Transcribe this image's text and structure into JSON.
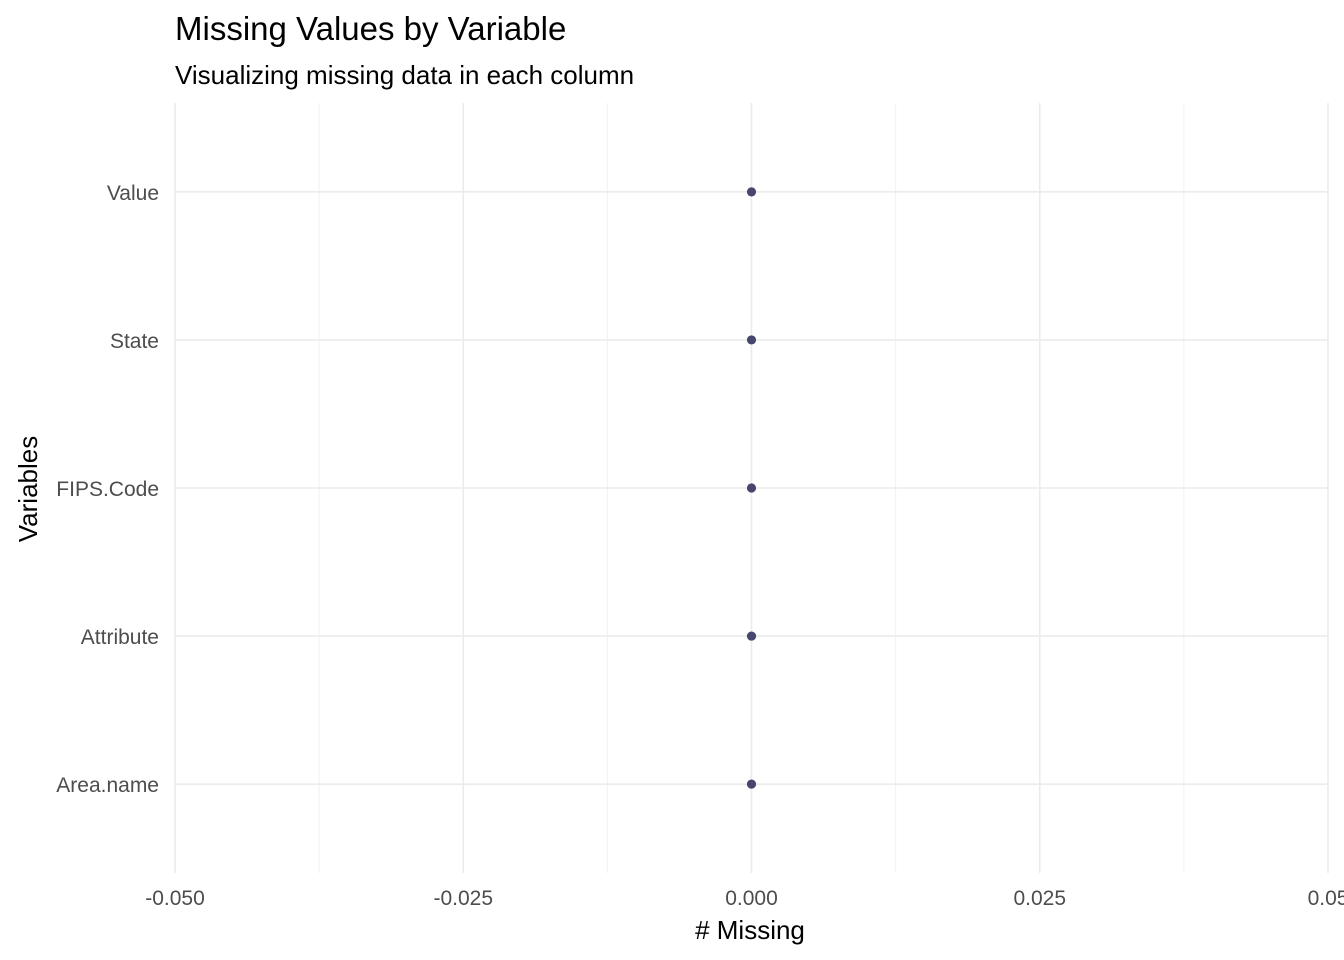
{
  "chart_data": {
    "type": "scatter",
    "title": "Missing Values by Variable",
    "subtitle": "Visualizing missing data in each column",
    "xlabel": "# Missing",
    "ylabel": "Variables",
    "categories": [
      "Area.name",
      "Attribute",
      "FIPS.Code",
      "State",
      "Value"
    ],
    "values": [
      0,
      0,
      0,
      0,
      0
    ],
    "xlim": [
      -0.05,
      0.05
    ],
    "x_ticks": [
      -0.05,
      -0.025,
      0,
      0.025,
      0.05
    ],
    "x_tick_labels": [
      "-0.050",
      "-0.025",
      "0.000",
      "0.025",
      "0.05"
    ],
    "grid": true,
    "legend": "none",
    "colors": {
      "point": "#46466e",
      "grid_major": "#ebebeb",
      "grid_minor": "#f2f2f2"
    }
  }
}
